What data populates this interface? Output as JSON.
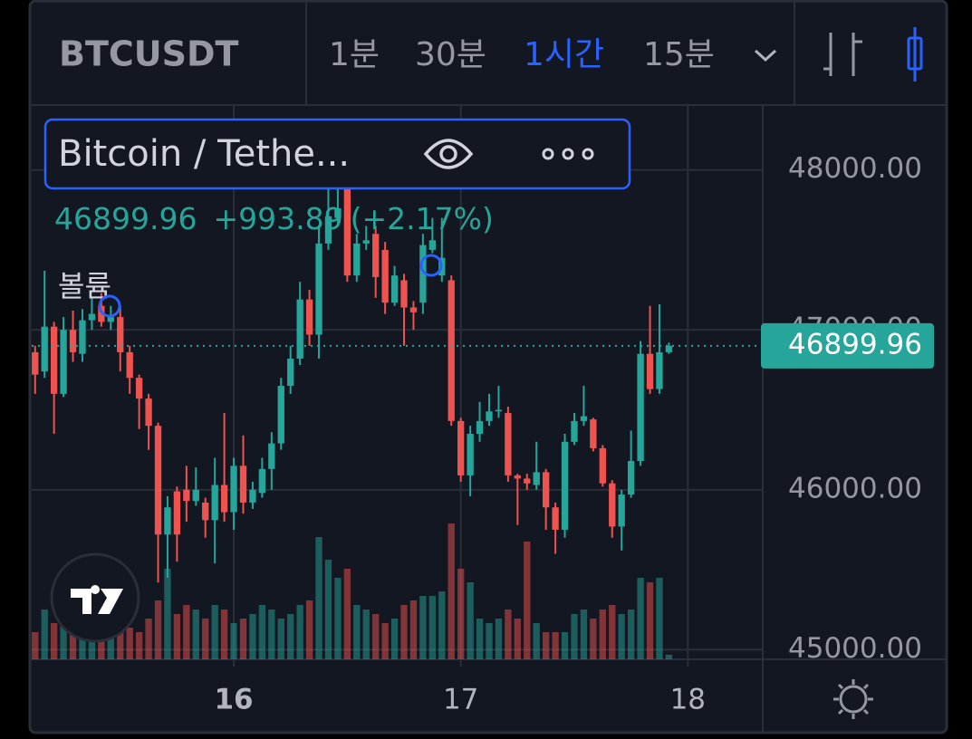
{
  "header": {
    "symbol": "BTCUSDT",
    "intervals": [
      "1분",
      "30분",
      "1시간",
      "15분"
    ],
    "active_interval": 2
  },
  "legend": {
    "name": "Bitcoin / Tethe...",
    "close": "46899.96",
    "change": "+993.89",
    "change_pct": "(+2.17%)",
    "volume_label": "볼륨"
  },
  "chart_data": {
    "type": "candlestick",
    "x": [
      15.125,
      15.1667,
      15.2083,
      15.25,
      15.2917,
      15.3333,
      15.375,
      15.4167,
      15.4583,
      15.5,
      15.5417,
      15.5833,
      15.625,
      15.6667,
      15.7083,
      15.75,
      15.7917,
      15.8333,
      15.875,
      15.9167,
      15.9583,
      16,
      16.0417,
      16.0833,
      16.125,
      16.1667,
      16.2083,
      16.25,
      16.2917,
      16.3333,
      16.375,
      16.4167,
      16.4583,
      16.5,
      16.5417,
      16.5833,
      16.625,
      16.6667,
      16.7083,
      16.75,
      16.7917,
      16.8333,
      16.875,
      16.9167,
      16.9583,
      17,
      17.0417,
      17.0833,
      17.125,
      17.1667,
      17.2083,
      17.25,
      17.2917,
      17.3333,
      17.375,
      17.4167,
      17.4583,
      17.5,
      17.5417,
      17.5833,
      17.625,
      17.6667,
      17.7083,
      17.75,
      17.7917,
      17.8333,
      17.875,
      17.9167
    ],
    "open": [
      46860,
      46740,
      47020,
      46600,
      47000,
      46850,
      47060,
      47150,
      47050,
      47080,
      46860,
      46700,
      46570,
      46400,
      45720,
      45990,
      46000,
      45930,
      45920,
      45810,
      46030,
      45860,
      46150,
      45920,
      45980,
      46130,
      46290,
      46650,
      46820,
      47190,
      46970,
      47540,
      47700,
      47880,
      47340,
      47540,
      47600,
      47500,
      47170,
      47310,
      47140,
      47170,
      47500,
      47340,
      47310,
      46430,
      46090,
      46350,
      46430,
      46490,
      46480,
      46090,
      46070,
      46030,
      46110,
      45890,
      45750,
      46300,
      46430,
      46440,
      46260,
      46040,
      45770,
      45970,
      46180,
      46850,
      46630,
      46860
    ],
    "high": [
      46900,
      47370,
      47050,
      47080,
      47120,
      47130,
      47200,
      47230,
      47150,
      47150,
      46900,
      46720,
      46600,
      46420,
      45960,
      46020,
      46150,
      46140,
      45950,
      46200,
      46480,
      46200,
      46340,
      46050,
      46200,
      46360,
      46700,
      46900,
      47300,
      47250,
      47650,
      47950,
      47950,
      48000,
      47600,
      47650,
      47650,
      47550,
      47400,
      47350,
      47180,
      47600,
      47700,
      47700,
      47340,
      46450,
      46400,
      46550,
      46600,
      46650,
      46520,
      46100,
      46100,
      46300,
      46130,
      45920,
      46350,
      46480,
      46650,
      46450,
      46280,
      46060,
      46000,
      46370,
      46930,
      47150,
      47160,
      46920
    ],
    "low": [
      46600,
      46700,
      46350,
      46580,
      46800,
      46800,
      47000,
      47020,
      47000,
      46740,
      46600,
      46380,
      46250,
      45420,
      45450,
      45550,
      45800,
      45900,
      45700,
      45540,
      45800,
      45750,
      45850,
      45880,
      45950,
      46000,
      46250,
      46600,
      46780,
      46900,
      46820,
      47500,
      47650,
      47300,
      47300,
      47500,
      47200,
      47100,
      47150,
      46900,
      47000,
      47100,
      47480,
      47300,
      46400,
      46050,
      45960,
      46300,
      46400,
      46450,
      46050,
      45780,
      46000,
      46000,
      45750,
      45600,
      45700,
      46280,
      46400,
      46240,
      46020,
      45700,
      45620,
      45950,
      46150,
      46600,
      46600,
      46850
    ],
    "close": [
      46720,
      47020,
      46600,
      47000,
      46860,
      47060,
      47100,
      47050,
      47080,
      46860,
      46700,
      46570,
      46400,
      45720,
      45890,
      45720,
      45930,
      46000,
      45810,
      46030,
      45860,
      46150,
      45920,
      46000,
      46130,
      46290,
      46650,
      46820,
      47190,
      46970,
      47540,
      47710,
      47760,
      47340,
      47540,
      47560,
      47330,
      47170,
      47340,
      47140,
      47110,
      47530,
      47560,
      47450,
      46430,
      46090,
      46350,
      46430,
      46490,
      46500,
      46090,
      46070,
      46040,
      46110,
      45890,
      45750,
      46300,
      46430,
      46460,
      46260,
      46040,
      45770,
      45970,
      46180,
      46850,
      46630,
      46860,
      46899.96
    ],
    "volume": [
      30,
      55,
      40,
      60,
      35,
      30,
      25,
      30,
      45,
      40,
      35,
      30,
      45,
      65,
      100,
      50,
      60,
      55,
      45,
      60,
      55,
      40,
      45,
      50,
      60,
      55,
      45,
      50,
      60,
      65,
      135,
      110,
      90,
      100,
      60,
      55,
      50,
      40,
      45,
      60,
      65,
      70,
      70,
      75,
      150,
      100,
      85,
      45,
      40,
      45,
      55,
      45,
      130,
      40,
      30,
      30,
      30,
      50,
      55,
      45,
      55,
      60,
      50,
      55,
      90,
      85,
      90,
      5
    ],
    "up_color": "#26a69a",
    "down_color": "#ef5350",
    "xlim": [
      15.11,
      18.33
    ],
    "xticks": [
      16,
      17,
      18
    ],
    "ylim": [
      44940,
      48400
    ],
    "yticks": [
      {
        "value": 45000,
        "label": "45000.00"
      },
      {
        "value": 46000,
        "label": "46000.00"
      },
      {
        "value": 47000,
        "label": "47000.00"
      },
      {
        "value": 48000,
        "label": "48000.00"
      }
    ],
    "last_price": {
      "value": 46899.96,
      "label": "46899.96"
    },
    "grid": true
  }
}
